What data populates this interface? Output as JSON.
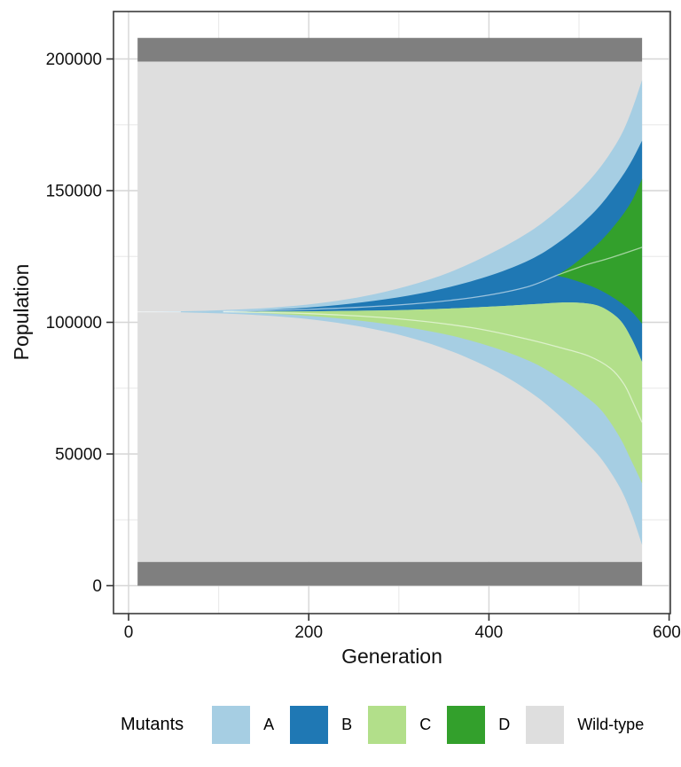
{
  "chart_data": {
    "type": "area",
    "variant": "muller_plot",
    "title": "",
    "xlabel": "Generation",
    "ylabel": "Population",
    "x_ticks": [
      0,
      200,
      400,
      600
    ],
    "x_minor_ticks": [
      100,
      300,
      500
    ],
    "y_ticks": [
      0,
      50000,
      100000,
      150000,
      200000
    ],
    "y_minor_ticks": [
      25000,
      75000,
      125000,
      175000
    ],
    "x_data_range": [
      10,
      570
    ],
    "population_total": 208000,
    "frame_bands": {
      "color": "#7F7F7F",
      "bottom": [
        0,
        9000
      ],
      "top": [
        199000,
        208000
      ]
    },
    "background_strain": {
      "name": "Wild-type",
      "color": "#DEDEDE",
      "band": [
        9000,
        199000
      ]
    },
    "series": [
      {
        "name": "A",
        "color": "#A6CEE3",
        "top": [
          [
            10,
            104000
          ],
          [
            60,
            104200
          ],
          [
            110,
            104700
          ],
          [
            160,
            105600
          ],
          [
            210,
            107200
          ],
          [
            260,
            109800
          ],
          [
            310,
            113800
          ],
          [
            360,
            119500
          ],
          [
            410,
            127500
          ],
          [
            450,
            135500
          ],
          [
            480,
            143500
          ],
          [
            505,
            151500
          ],
          [
            525,
            159500
          ],
          [
            545,
            170000
          ],
          [
            558,
            180000
          ],
          [
            570,
            192000
          ]
        ],
        "bottom": [
          [
            10,
            104000
          ],
          [
            60,
            103800
          ],
          [
            110,
            103300
          ],
          [
            160,
            102400
          ],
          [
            210,
            100800
          ],
          [
            260,
            98200
          ],
          [
            310,
            94400
          ],
          [
            360,
            88800
          ],
          [
            410,
            81000
          ],
          [
            450,
            72500
          ],
          [
            480,
            64000
          ],
          [
            505,
            55500
          ],
          [
            525,
            48000
          ],
          [
            545,
            37500
          ],
          [
            558,
            27500
          ],
          [
            570,
            15500
          ]
        ]
      },
      {
        "name": "B",
        "color": "#1F78B4",
        "top": [
          [
            105,
            104150
          ],
          [
            160,
            104800
          ],
          [
            210,
            105900
          ],
          [
            260,
            107600
          ],
          [
            310,
            110100
          ],
          [
            360,
            113700
          ],
          [
            410,
            118800
          ],
          [
            450,
            124500
          ],
          [
            480,
            131000
          ],
          [
            505,
            138000
          ],
          [
            525,
            145000
          ],
          [
            545,
            154000
          ],
          [
            558,
            161000
          ],
          [
            570,
            169000
          ]
        ],
        "bottom": [
          [
            105,
            104050
          ],
          [
            160,
            104100
          ],
          [
            210,
            104200
          ],
          [
            260,
            104400
          ],
          [
            310,
            104700
          ],
          [
            360,
            105300
          ],
          [
            410,
            106100
          ],
          [
            450,
            106900
          ],
          [
            480,
            107500
          ],
          [
            505,
            107300
          ],
          [
            525,
            105800
          ],
          [
            545,
            101000
          ],
          [
            558,
            94000
          ],
          [
            570,
            85000
          ]
        ]
      },
      {
        "name": "C",
        "color": "#B2DF8A",
        "top": [
          [
            105,
            104050
          ],
          [
            160,
            104100
          ],
          [
            210,
            104200
          ],
          [
            260,
            104400
          ],
          [
            310,
            104700
          ],
          [
            360,
            105300
          ],
          [
            410,
            106100
          ],
          [
            450,
            106900
          ],
          [
            480,
            107500
          ],
          [
            505,
            107300
          ],
          [
            525,
            105800
          ],
          [
            545,
            101000
          ],
          [
            558,
            94000
          ],
          [
            570,
            85000
          ]
        ],
        "bottom": [
          [
            105,
            103950
          ],
          [
            160,
            103300
          ],
          [
            210,
            102200
          ],
          [
            260,
            100500
          ],
          [
            310,
            98100
          ],
          [
            360,
            94800
          ],
          [
            410,
            89900
          ],
          [
            450,
            84500
          ],
          [
            480,
            78500
          ],
          [
            505,
            72500
          ],
          [
            525,
            66500
          ],
          [
            545,
            56500
          ],
          [
            558,
            47500
          ],
          [
            570,
            38900
          ]
        ]
      },
      {
        "name": "D",
        "color": "#33A02C",
        "top": [
          [
            475,
            117800
          ],
          [
            490,
            121000
          ],
          [
            505,
            125000
          ],
          [
            520,
            129500
          ],
          [
            535,
            135000
          ],
          [
            550,
            141500
          ],
          [
            560,
            147000
          ],
          [
            570,
            154500
          ]
        ],
        "bottom": [
          [
            475,
            117800
          ],
          [
            490,
            116500
          ],
          [
            505,
            114800
          ],
          [
            520,
            112800
          ],
          [
            535,
            110000
          ],
          [
            550,
            106500
          ],
          [
            560,
            103500
          ],
          [
            570,
            99500
          ]
        ]
      }
    ],
    "split_lines": [
      {
        "name": "wildtype-center",
        "points": [
          [
            10,
            104000
          ],
          [
            58,
            104000
          ]
        ]
      },
      {
        "name": "b-split",
        "points": [
          [
            105,
            104100
          ],
          [
            200,
            104900
          ],
          [
            300,
            106600
          ],
          [
            380,
            109300
          ],
          [
            440,
            113200
          ],
          [
            475,
            117800
          ]
        ]
      },
      {
        "name": "d-split",
        "points": [
          [
            475,
            117800
          ],
          [
            505,
            121500
          ],
          [
            535,
            124500
          ],
          [
            570,
            128500
          ]
        ]
      },
      {
        "name": "c-split",
        "points": [
          [
            105,
            104000
          ],
          [
            200,
            103300
          ],
          [
            300,
            101300
          ],
          [
            380,
            98000
          ],
          [
            440,
            93800
          ],
          [
            480,
            90300
          ],
          [
            510,
            87300
          ],
          [
            535,
            82500
          ],
          [
            550,
            76500
          ],
          [
            560,
            69500
          ],
          [
            570,
            62000
          ]
        ]
      }
    ],
    "legend": {
      "title": "Mutants",
      "items": [
        {
          "label": "A",
          "color": "#A6CEE3"
        },
        {
          "label": "B",
          "color": "#1F78B4"
        },
        {
          "label": "C",
          "color": "#B2DF8A"
        },
        {
          "label": "D",
          "color": "#33A02C"
        },
        {
          "label": "Wild-type",
          "color": "#DEDEDE"
        }
      ]
    },
    "style": {
      "grid_major_color": "#D6D6D6",
      "grid_minor_color": "#EBEBEB",
      "panel_border_color": "#3b3b3b",
      "tick_color": "#333333",
      "split_line_color": "rgba(255,255,255,0.55)"
    }
  }
}
